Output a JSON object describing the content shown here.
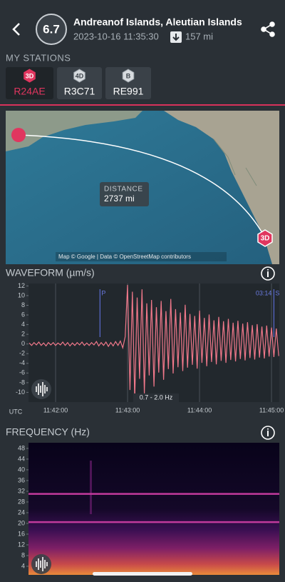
{
  "header": {
    "magnitude": "6.7",
    "title": "Andreanof Islands, Aleutian Islands",
    "datetime": "2023-10-16 11:35:30",
    "distance": "157 mi"
  },
  "stations": {
    "label": "MY STATIONS",
    "items": [
      {
        "badge": "3D",
        "name": "R24AE"
      },
      {
        "badge": "4D",
        "name": "R3C71"
      },
      {
        "badge": "B",
        "name": "RE991"
      }
    ]
  },
  "map": {
    "distance_label": "DISTANCE",
    "distance": "2737 mi",
    "station_badge": "3D",
    "attribution": "Map © Google | Data © OpenStreetMap contributors"
  },
  "chart_data": [
    {
      "type": "line",
      "title": "WAVEFORM (µm/s)",
      "x_label": "UTC",
      "color": "#f0788a",
      "x": [
        -22,
        -20,
        -18,
        -16,
        -14,
        -12,
        -10,
        -8,
        -6,
        -4,
        -2,
        0,
        2,
        4,
        6,
        8,
        10,
        12,
        14,
        16,
        18,
        20,
        22,
        24,
        26,
        28,
        30,
        32,
        34,
        36,
        38,
        40,
        42,
        44,
        46,
        48,
        50,
        52,
        54,
        56,
        58,
        60,
        62,
        64,
        66,
        68,
        70,
        72,
        74,
        76,
        78,
        80,
        82,
        84,
        86,
        88,
        90,
        92,
        94,
        96,
        98,
        100,
        102,
        104,
        106,
        108,
        110,
        112,
        114,
        116,
        118,
        120,
        122,
        124,
        126,
        128,
        130,
        132,
        134,
        136,
        138,
        140,
        142,
        144,
        146,
        148,
        150,
        152,
        154,
        156,
        158,
        160,
        162,
        164,
        166,
        168,
        170,
        172,
        174,
        176,
        178,
        180,
        182,
        184,
        186
      ],
      "values": [
        0.2,
        -0.3,
        0.3,
        -0.2,
        0.4,
        -0.3,
        0.2,
        -0.4,
        0.3,
        -0.2,
        0.3,
        -0.3,
        0.2,
        -0.2,
        0.4,
        -0.3,
        0.3,
        -0.4,
        0.2,
        -0.3,
        0.3,
        -0.2,
        0.4,
        -0.3,
        0.2,
        -0.3,
        0.3,
        -0.2,
        0.5,
        -0.4,
        0.3,
        -0.3,
        0.4,
        -0.5,
        0.3,
        -0.4,
        0.5,
        -0.3,
        0.6,
        -0.8,
        1.5,
        12.2,
        -9.5,
        10.8,
        -11.5,
        9.6,
        -7.2,
        11.3,
        -10.2,
        8.4,
        -6.5,
        9.1,
        -8.8,
        7.6,
        -5.9,
        8.9,
        -7.4,
        6.8,
        -5.2,
        9.3,
        -6.1,
        7.2,
        -4.8,
        6.5,
        -5.6,
        8.1,
        -4.9,
        6.2,
        -4.3,
        5.8,
        -5.1,
        6.9,
        -3.9,
        5.4,
        -4.6,
        6.1,
        -3.7,
        4.9,
        -4.2,
        5.6,
        -3.5,
        4.7,
        -3.9,
        5.2,
        -3.3,
        4.4,
        -3.6,
        4.8,
        -3.1,
        4.2,
        -3.4,
        4.5,
        -2.9,
        3.9,
        -3.2,
        4.1,
        -2.8,
        3.6,
        -3.0,
        3.8,
        -2.6,
        3.4,
        -2.7,
        3.2,
        -2.5
      ],
      "xlim": [
        -22.6,
        186.5
      ],
      "xticks": [
        {
          "value": 0,
          "label": "11:42:00"
        },
        {
          "value": 60,
          "label": "11:43:00"
        },
        {
          "value": 120,
          "label": "11:44:00"
        },
        {
          "value": 180,
          "label": "11:45:00"
        }
      ],
      "ylim": [
        -12,
        12.5
      ],
      "yticks": [
        12,
        10,
        8,
        6,
        4,
        2,
        0,
        -2,
        -4,
        -6,
        -8,
        -10
      ],
      "grid": true,
      "annotations": [
        {
          "x": 37,
          "label": "P"
        },
        {
          "x": 182,
          "label": "S",
          "time": "03:14"
        }
      ],
      "filter": "0.7 - 2.0 Hz"
    },
    {
      "type": "spectrogram",
      "title": "FREQUENCY (Hz)",
      "ylim": [
        0.8,
        50.1
      ],
      "yticks": [
        48,
        44,
        40,
        36,
        32,
        28,
        24,
        20,
        16,
        12,
        8,
        4
      ],
      "bands": [
        31,
        20.5
      ],
      "band_color": "#c23a9c"
    }
  ]
}
